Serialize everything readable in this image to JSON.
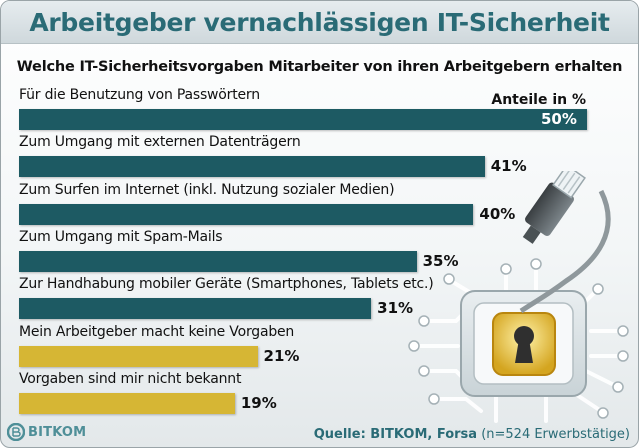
{
  "title": "Arbeitgeber vernachlässigen IT-Sicherheit",
  "subtitle": "Welche IT-Sicherheitsvorgaben Mitarbeiter von ihren Arbeitgebern erhalten",
  "unit_label": "Anteile in %",
  "source": {
    "prefix": "Quelle: ",
    "name": "BITKOM, Forsa",
    "note": " (n=524 Erwerbstätige)"
  },
  "logo_text": "BITKOM",
  "colors": {
    "teal": "#1d5a63",
    "gold": "#d6b634",
    "title": "#2a6b76"
  },
  "chart_data": {
    "type": "bar",
    "orientation": "horizontal",
    "title": "Arbeitgeber vernachlässigen IT-Sicherheit",
    "subtitle": "Welche IT-Sicherheitsvorgaben Mitarbeiter von ihren Arbeitgebern erhalten",
    "xlim": [
      0,
      50
    ],
    "grid": false,
    "categories": [
      "Für die Benutzung von Passwörtern",
      "Zum Umgang mit externen Datenträgern",
      "Zum Surfen im Internet (inkl. Nutzung sozialer Medien)",
      "Zum Umgang mit Spam-Mails",
      "Zur Handhabung mobiler Geräte (Smartphones, Tablets etc.)",
      "Mein Arbeitgeber macht keine Vorgaben",
      "Vorgaben sind mir nicht bekannt"
    ],
    "values": [
      50,
      41,
      40,
      35,
      31,
      21,
      19
    ],
    "value_labels": [
      "50%",
      "41%",
      "40%",
      "35%",
      "31%",
      "21%",
      "19%"
    ],
    "bar_colors": [
      "teal",
      "teal",
      "teal",
      "teal",
      "teal",
      "gold",
      "gold"
    ]
  }
}
